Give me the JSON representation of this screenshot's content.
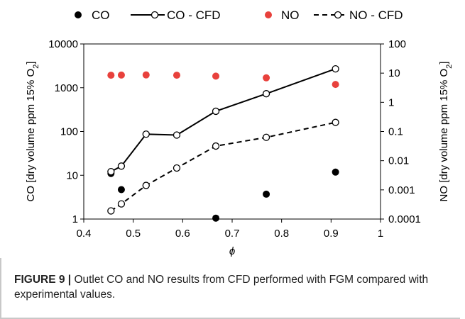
{
  "chart_data": {
    "type": "line",
    "xlabel": "ϕ",
    "ylabel_left": "CO [dry volume ppm 15% O",
    "ylabel_left_sub": "2",
    "ylabel_left_end": "]",
    "ylabel_right": "NO [dry volume ppm 15% O",
    "ylabel_right_sub": "2",
    "ylabel_right_end": "]",
    "xlim": [
      0.4,
      1
    ],
    "x_ticks": [
      "0.4",
      "0.5",
      "0.6",
      "0.7",
      "0.8",
      "0.9",
      "1"
    ],
    "ylim_left": [
      1,
      10000
    ],
    "y_ticks_left": [
      "1",
      "10",
      "100",
      "1000",
      "10000"
    ],
    "ylim_right": [
      0.0001,
      100
    ],
    "y_ticks_right": [
      "0.0001",
      "0.001",
      "0.01",
      "0.1",
      "1",
      "10",
      "100"
    ],
    "yscale": "log",
    "grid": false,
    "legend_position": "top",
    "series": [
      {
        "name": "CO",
        "axis": "left",
        "style": "markers-filled",
        "color": "#000000",
        "x": [
          0.455,
          0.476,
          0.667,
          0.769,
          0.909
        ],
        "y": [
          11,
          4.7,
          1.05,
          3.7,
          11.8
        ]
      },
      {
        "name": "CO - CFD",
        "axis": "left",
        "style": "solid-line-open-markers",
        "color": "#000000",
        "x": [
          0.455,
          0.476,
          0.526,
          0.588,
          0.667,
          0.769,
          0.909
        ],
        "y": [
          12.1,
          16.2,
          87,
          83,
          290,
          730,
          2700
        ]
      },
      {
        "name": "NO",
        "axis": "right",
        "style": "markers-filled",
        "color": "#e8413c",
        "x": [
          0.455,
          0.476,
          0.526,
          0.588,
          0.667,
          0.769,
          0.909
        ],
        "y": [
          8.5,
          8.6,
          8.7,
          8.5,
          7.9,
          6.9,
          4.1
        ]
      },
      {
        "name": "NO - CFD",
        "axis": "right",
        "style": "dashed-line-open-markers",
        "color": "#000000",
        "x": [
          0.455,
          0.476,
          0.526,
          0.588,
          0.667,
          0.769,
          0.909
        ],
        "y": [
          0.00019,
          0.00033,
          0.00142,
          0.0056,
          0.0317,
          0.063,
          0.205
        ]
      }
    ]
  },
  "caption": {
    "label": "FIGURE 9 |",
    "text": " Outlet CO and NO results from CFD performed with FGM compared with experimental values."
  }
}
